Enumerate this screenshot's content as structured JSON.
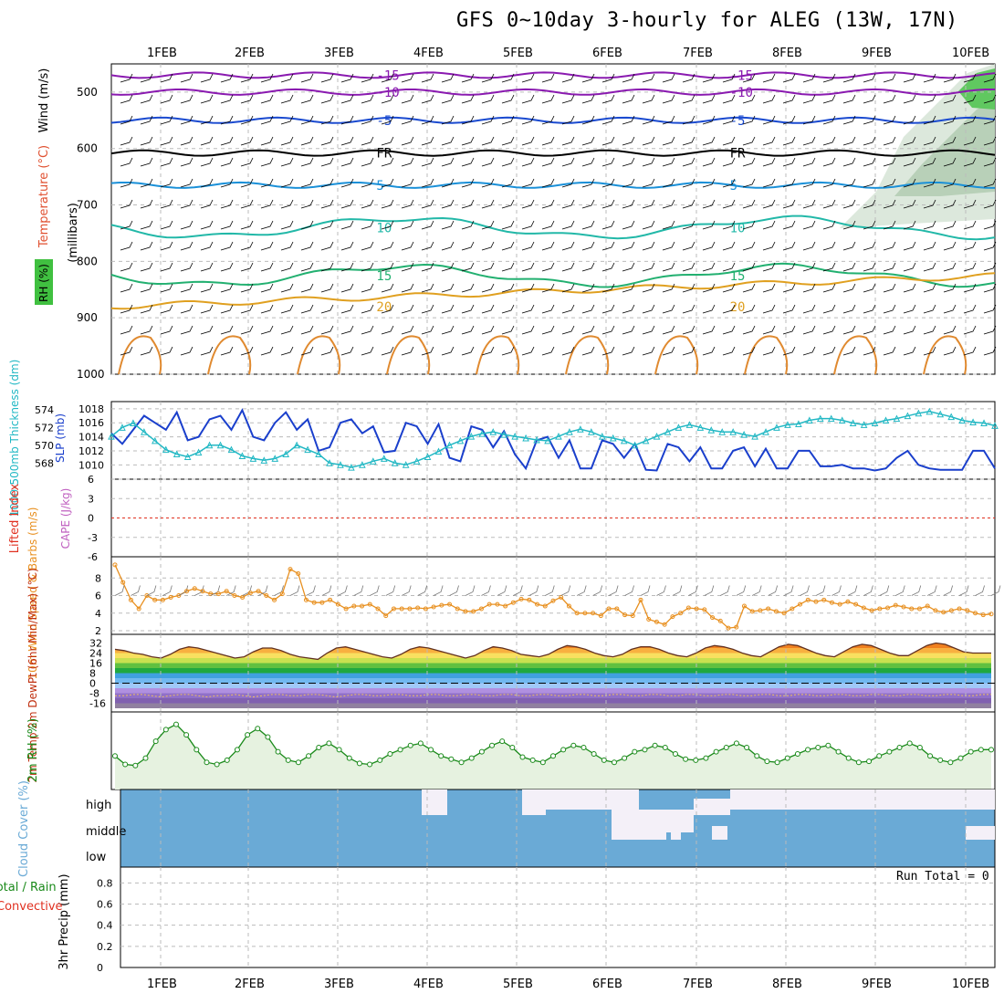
{
  "title": "GFS 0~10day 3-hourly for ALEG (13W, 17N)",
  "dates": [
    "1FEB",
    "2FEB",
    "3FEB",
    "4FEB",
    "5FEB",
    "6FEB",
    "7FEB",
    "8FEB",
    "9FEB",
    "10FEB"
  ],
  "run_total": "Run Total = 0",
  "colors": {
    "grid": "#a0a0a0",
    "slp": "#1a3fcc",
    "thickness": "#22b8c4",
    "wind": "#e89020",
    "rh": "#1a8a1a",
    "cloud": "#6aaad6",
    "lifted": "#e03020",
    "cape": "#c060c0"
  },
  "chart_data": [
    {
      "type": "heatmap",
      "panel": "upper-air",
      "ylabels": {
        "wind": "Wind (m/s)",
        "temp": "Temperature (°C)",
        "rh": "RH (%)",
        "axis": "(millibars)"
      },
      "yticks": [
        500,
        600,
        700,
        800,
        900,
        1000
      ],
      "contours": [
        {
          "label": "-15",
          "level": 470
        },
        {
          "label": "-10",
          "level": 500
        },
        {
          "label": "-5",
          "level": 550
        },
        {
          "label": "FR",
          "level": 608
        },
        {
          "label": "5",
          "level": 665
        },
        {
          "label": "10",
          "level": 740
        },
        {
          "label": "15",
          "level": 825
        },
        {
          "label": "20",
          "level": 880
        }
      ]
    },
    {
      "type": "line",
      "panel": "slp-thickness",
      "ylabel_left": "1000-500mb Thickness (dm)",
      "ylabel_right": "SLP (mb)",
      "yticks_left": [
        568,
        570,
        572,
        574
      ],
      "yticks_right": [
        1010,
        1012,
        1014,
        1016,
        1018
      ],
      "series": [
        {
          "name": "SLP",
          "values": [
            1014.5,
            1013,
            1015,
            1017,
            1016,
            1015,
            1017.5,
            1013.5,
            1014,
            1016.5,
            1017,
            1015,
            1017.8,
            1014,
            1013.5,
            1016,
            1017.5,
            1015,
            1016.5,
            1012,
            1012.5,
            1016,
            1016.5,
            1014.5,
            1015.5,
            1011.8,
            1012,
            1016,
            1015.5,
            1013,
            1015.8,
            1011,
            1010.5,
            1015.5,
            1015,
            1012.5,
            1014.8,
            1011.5,
            1009.5,
            1013.5,
            1014,
            1011,
            1013.5,
            1009.5,
            1009.5,
            1013.5,
            1013,
            1011,
            1013,
            1009.3,
            1009.2,
            1013,
            1012.5,
            1010.5,
            1012.5,
            1009.5,
            1009.5,
            1012,
            1012.5,
            1009.8,
            1012.3,
            1009.5,
            1009.5,
            1012,
            1012,
            1009.8,
            1009.8,
            1010,
            1009.5,
            1009.5,
            1009.2,
            1009.5,
            1011,
            1012,
            1010,
            1009.5,
            1009.3,
            1009.3,
            1009.3,
            1012,
            1012,
            1009.5
          ]
        },
        {
          "name": "Thickness",
          "values": [
            571,
            572,
            572.5,
            571.5,
            570.5,
            569.5,
            569,
            568.7,
            569.2,
            570,
            570,
            569.5,
            568.8,
            568.5,
            568.3,
            568.5,
            569,
            570,
            569.5,
            569,
            568,
            567.8,
            567.5,
            567.8,
            568.2,
            568.5,
            568,
            567.8,
            568.2,
            568.7,
            569.3,
            570,
            570.5,
            571,
            571.3,
            571.5,
            571.2,
            571,
            570.8,
            570.6,
            570.5,
            571,
            571.5,
            571.8,
            571.5,
            571,
            570.8,
            570.5,
            570,
            570.5,
            571,
            571.5,
            572,
            572.3,
            572,
            571.7,
            571.5,
            571.5,
            571.2,
            571,
            571.5,
            572,
            572.3,
            572.4,
            572.8,
            573,
            573,
            572.8,
            572.5,
            572.3,
            572.5,
            572.8,
            573,
            573.3,
            573.6,
            573.8,
            573.5,
            573.2,
            572.8,
            572.6,
            572.5,
            572.2
          ]
        }
      ]
    },
    {
      "type": "line",
      "panel": "lifted-cape",
      "ylabel_left": "Lifted Index",
      "ylabel_right": "CAPE (J/kg)",
      "yticks": [
        6,
        3,
        0,
        -3,
        -6
      ],
      "series": []
    },
    {
      "type": "line",
      "panel": "wind10m",
      "ylabel": "10m Wind Speed & Barbs (m/s)",
      "yticks": [
        2,
        4,
        6,
        8
      ],
      "series": [
        {
          "name": "Speed",
          "values": [
            9.5,
            7.5,
            5.5,
            4.5,
            6,
            5.5,
            5.5,
            5.8,
            6,
            6.5,
            6.8,
            6.5,
            6.2,
            6.2,
            6.5,
            6,
            5.8,
            6.3,
            6.5,
            6,
            5.5,
            6.2,
            9,
            8.5,
            5.5,
            5.2,
            5.2,
            5.5,
            5,
            4.5,
            4.8,
            4.8,
            5,
            4.5,
            3.7,
            4.5,
            4.5,
            4.5,
            4.6,
            4.5,
            4.7,
            4.9,
            5,
            4.5,
            4.2,
            4.2,
            4.5,
            5,
            5,
            4.8,
            5.2,
            5.6,
            5.5,
            5,
            4.8,
            5.4,
            5.8,
            4.8,
            4,
            4,
            4,
            3.7,
            4.5,
            4.5,
            3.8,
            3.7,
            5.5,
            3.3,
            3,
            2.7,
            3.6,
            4,
            4.6,
            4.5,
            4.4,
            3.5,
            3.1,
            2.3,
            2.4,
            4.8,
            4.2,
            4.3,
            4.5,
            4.2,
            4,
            4.5,
            5,
            5.5,
            5.3,
            5.5,
            5.2,
            5,
            5.3,
            5,
            4.6,
            4.3,
            4.5,
            4.6,
            4.9,
            4.7,
            4.5,
            4.5,
            4.8,
            4.3,
            4.1,
            4.3,
            4.5,
            4.3,
            4,
            3.8,
            3.9
          ]
        }
      ]
    },
    {
      "type": "area",
      "panel": "temp2m",
      "ylabel": "2m Temp 2m DewPt (6hr Min/Max) (°C)",
      "yticks": [
        32,
        24,
        16,
        8,
        0,
        -8,
        -16
      ],
      "series": [
        {
          "name": "Temp",
          "values": [
            27,
            26,
            24,
            23,
            21,
            20,
            23,
            27,
            29,
            28,
            26,
            24,
            22,
            20,
            21,
            25,
            28,
            28,
            26,
            23,
            21,
            20,
            19,
            24,
            28,
            29,
            27,
            25,
            23,
            21,
            20,
            23,
            27,
            29,
            28,
            26,
            24,
            22,
            20,
            22,
            26,
            29,
            28,
            26,
            23,
            22,
            21,
            23,
            27,
            30,
            29,
            27,
            24,
            22,
            21,
            23,
            27,
            29,
            29,
            27,
            24,
            22,
            21,
            24,
            28,
            30,
            29,
            27,
            24,
            22,
            21,
            25,
            29,
            31,
            30,
            27,
            24,
            22,
            21,
            25,
            29,
            31,
            30,
            27,
            24,
            22,
            22,
            26,
            30,
            32,
            31,
            28,
            25,
            24,
            24,
            24
          ]
        },
        {
          "name": "DewPt",
          "values": [
            -10,
            -10,
            -9,
            -9,
            -10,
            -11,
            -10,
            -9,
            -9,
            -10,
            -11,
            -10,
            -10,
            -9,
            -10,
            -11,
            -10,
            -9,
            -9,
            -10,
            -10,
            -9,
            -9,
            -10,
            -11,
            -10,
            -9,
            -9,
            -10,
            -10,
            -9,
            -9,
            -10,
            -10,
            -9,
            -9,
            -10,
            -10,
            -9,
            -9,
            -10,
            -10,
            -9,
            -9,
            -10,
            -10,
            -9,
            -9,
            -10,
            -10,
            -9,
            -9,
            -10,
            -10,
            -9,
            -9,
            -10,
            -10,
            -9,
            -9,
            -10,
            -10,
            -9,
            -9,
            -10,
            -10,
            -9,
            -9,
            -10,
            -10,
            -9,
            -9,
            -10,
            -10,
            -9,
            -9,
            -10,
            -10,
            -9,
            -9,
            -10,
            -10,
            -9,
            -9,
            -10,
            -10,
            -9,
            -9,
            -10,
            -10,
            -9,
            -9,
            -10,
            -10,
            -9,
            -9
          ]
        }
      ]
    },
    {
      "type": "area",
      "panel": "rh2m",
      "ylabel": "2m RH (%)",
      "series": [
        {
          "name": "RH",
          "values": [
            30,
            22,
            21,
            28,
            44,
            55,
            60,
            50,
            36,
            24,
            22,
            26,
            36,
            50,
            56,
            48,
            34,
            26,
            24,
            30,
            38,
            42,
            36,
            28,
            23,
            22,
            26,
            32,
            36,
            40,
            42,
            36,
            30,
            27,
            24,
            28,
            34,
            40,
            44,
            38,
            29,
            26,
            24,
            30,
            36,
            40,
            38,
            32,
            26,
            24,
            28,
            34,
            36,
            40,
            38,
            32,
            27,
            26,
            28,
            34,
            38,
            42,
            38,
            30,
            25,
            24,
            28,
            32,
            36,
            38,
            40,
            34,
            28,
            24,
            25,
            30,
            34,
            38,
            42,
            38,
            30,
            26,
            24,
            28,
            34,
            36,
            36
          ]
        }
      ]
    },
    {
      "type": "heatmap",
      "panel": "cloud-cover",
      "ylabel": "Cloud Cover (%)",
      "rows": [
        "high",
        "middle",
        "low"
      ]
    },
    {
      "type": "bar",
      "panel": "precip",
      "ylabel": "3hr Precip (mm)",
      "legend": [
        "Total / Rain",
        "Convective"
      ],
      "yticks": [
        0,
        0.2,
        0.4,
        0.6,
        0.8
      ],
      "values": []
    }
  ]
}
